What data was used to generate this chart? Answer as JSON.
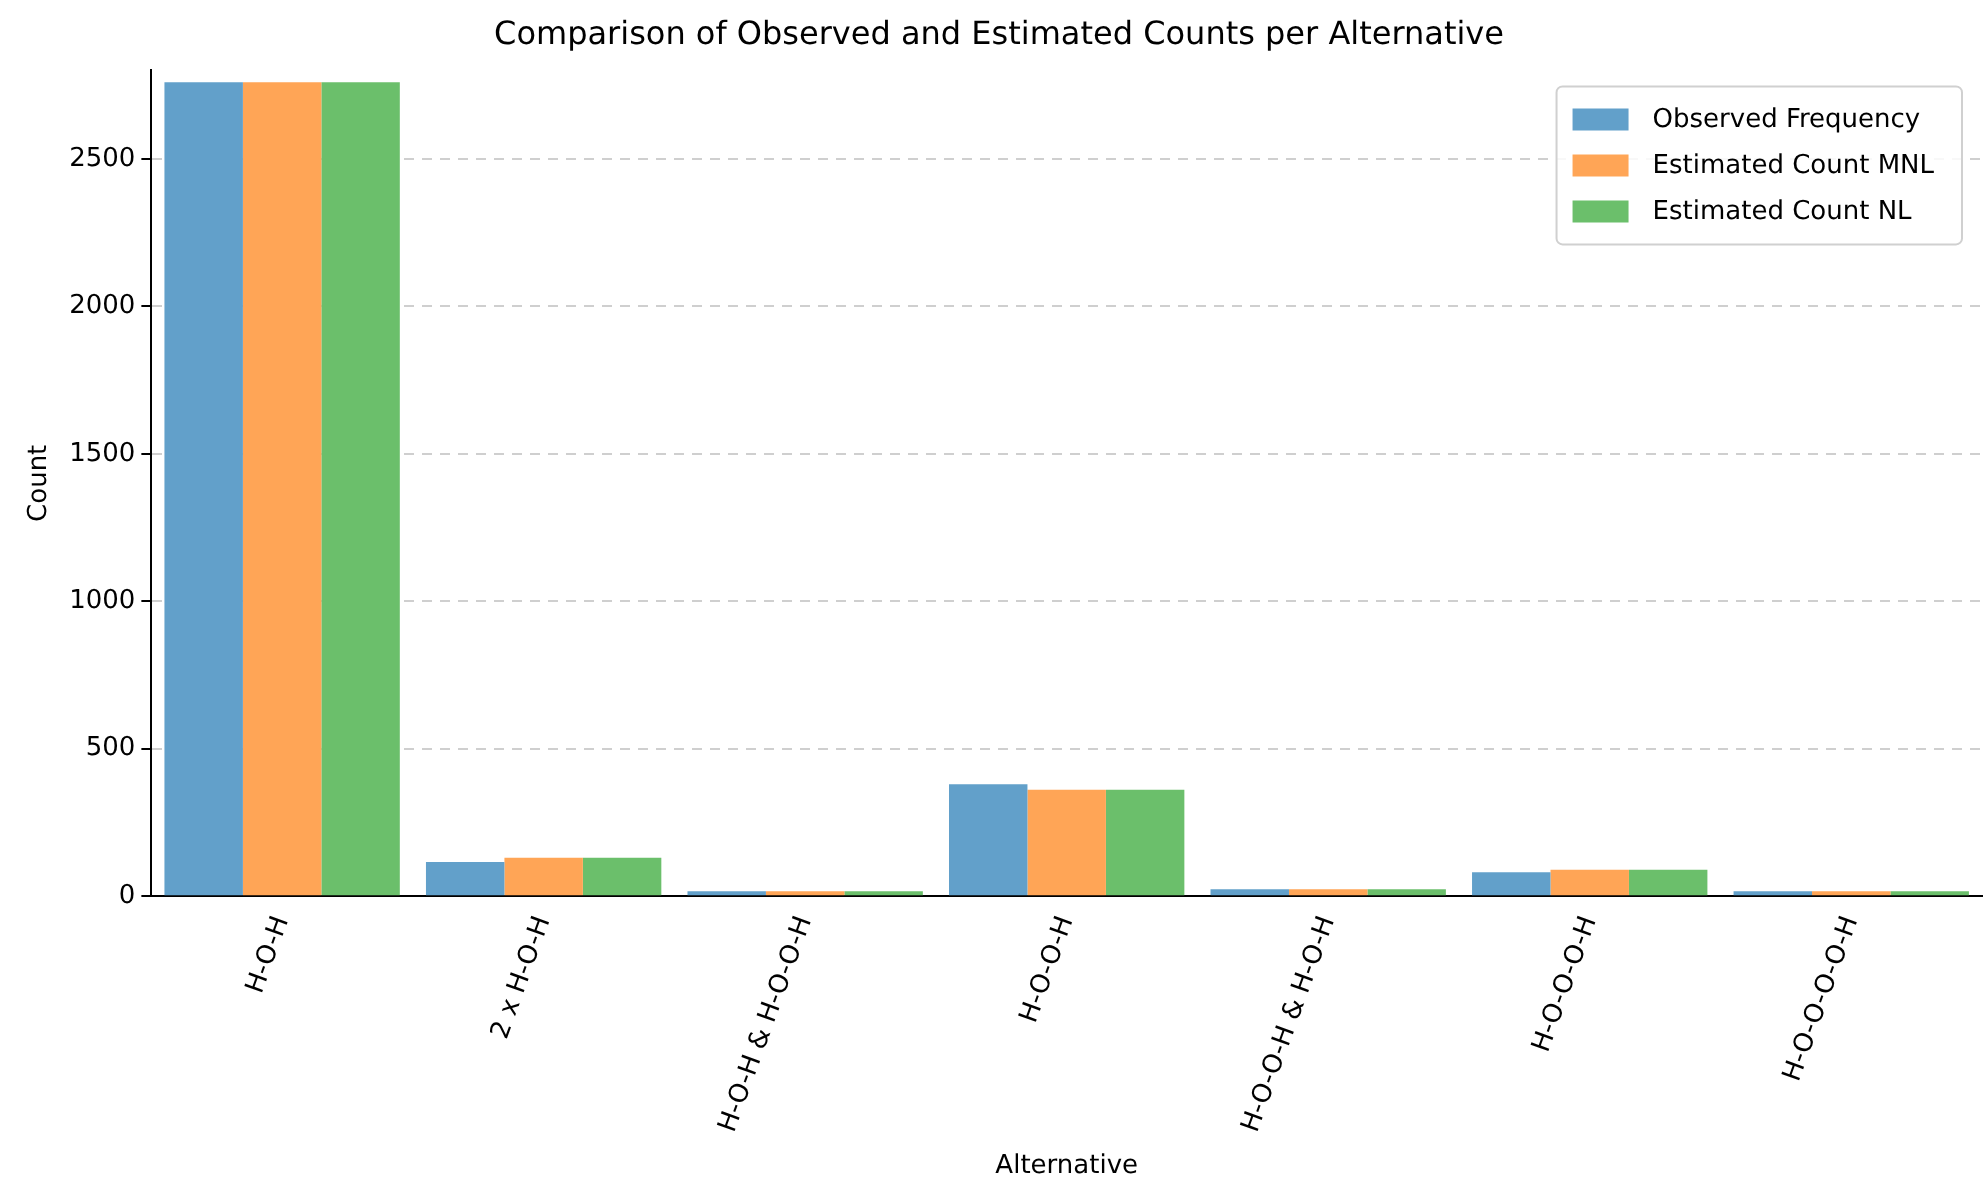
{
  "chart_data": {
    "type": "bar",
    "title": "Comparison of Observed and Estimated Counts per Alternative",
    "xlabel": "Alternative",
    "ylabel": "Count",
    "categories": [
      "H-O-H",
      "2 x H-O-H",
      "H-O-H & H-O-O-H",
      "H-O-O-H",
      "H-O-O-H & H-O-H",
      "H-O-O-O-H",
      "H-O-O-O-O-H"
    ],
    "series": [
      {
        "name": "Observed Frequency",
        "color": "#62a0ca",
        "values": [
          2760,
          116,
          17,
          380,
          24,
          81,
          17
        ]
      },
      {
        "name": "Estimated Count MNL",
        "color": "#ffa556",
        "values": [
          2760,
          130,
          17,
          361,
          24,
          90,
          17
        ]
      },
      {
        "name": "Estimated Count NL",
        "color": "#6bbf6b",
        "values": [
          2760,
          130,
          17,
          361,
          24,
          90,
          17
        ]
      }
    ],
    "ylim": [
      0,
      2800
    ],
    "yticks": [
      0,
      500,
      1000,
      1500,
      2000,
      2500
    ],
    "grid": "y",
    "legend": "top right"
  }
}
